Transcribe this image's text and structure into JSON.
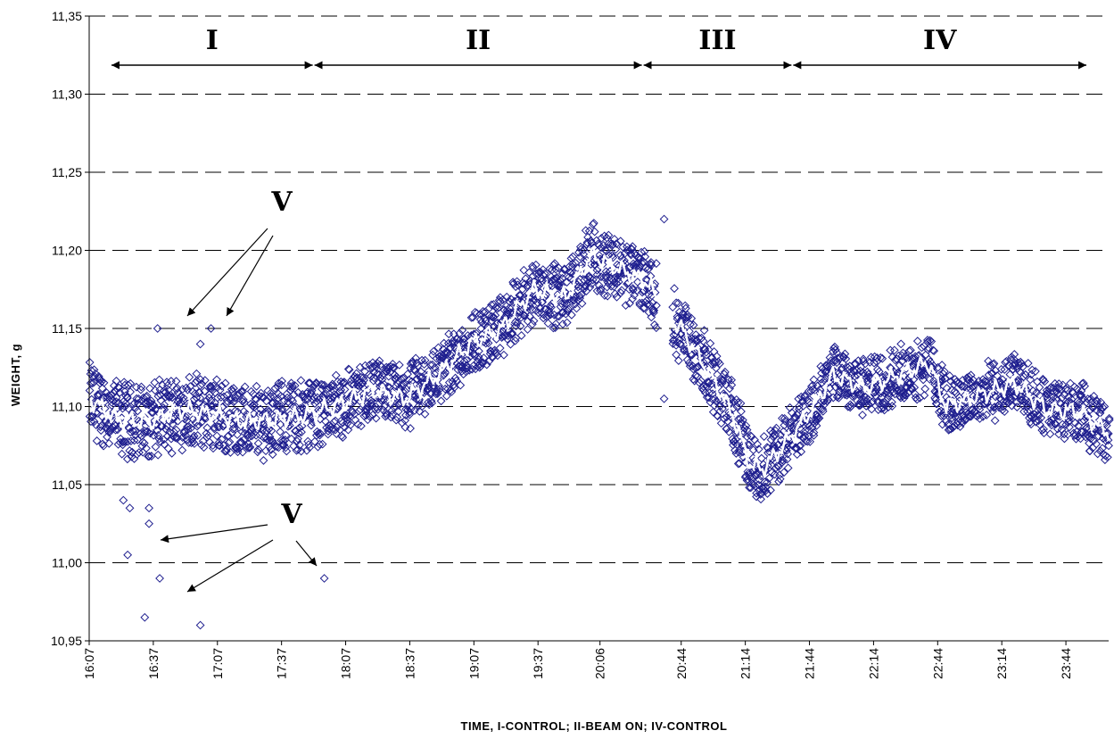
{
  "chart_data": {
    "type": "scatter",
    "title": "",
    "xlabel": "TIME, I-CONTROL; II-BEAM ON; IV-CONTROL",
    "ylabel": "WEIGHT, g",
    "ylim": [
      10.95,
      11.35
    ],
    "yticks": [
      "10,95",
      "11,00",
      "11,05",
      "11,10",
      "11,15",
      "11,20",
      "11,25",
      "11,30",
      "11,35"
    ],
    "xlim_minutes": [
      967,
      1444
    ],
    "xticks": [
      "16:07",
      "16:37",
      "17:07",
      "17:37",
      "18:07",
      "18:37",
      "19:07",
      "19:37",
      "20:06",
      "20:44",
      "21:14",
      "21:44",
      "22:14",
      "22:44",
      "23:14",
      "23:44"
    ],
    "grid": "horizontal dashed",
    "marker": "diamond",
    "marker_color": "#1f1f8f",
    "trend_color": "#ffffff",
    "series_profile": [
      {
        "t": 967,
        "y": 11.105
      },
      {
        "t": 980,
        "y": 11.092
      },
      {
        "t": 995,
        "y": 11.09
      },
      {
        "t": 1010,
        "y": 11.098
      },
      {
        "t": 1025,
        "y": 11.095
      },
      {
        "t": 1040,
        "y": 11.09
      },
      {
        "t": 1055,
        "y": 11.092
      },
      {
        "t": 1070,
        "y": 11.095
      },
      {
        "t": 1085,
        "y": 11.102
      },
      {
        "t": 1100,
        "y": 11.11
      },
      {
        "t": 1115,
        "y": 11.105
      },
      {
        "t": 1130,
        "y": 11.12
      },
      {
        "t": 1145,
        "y": 11.14
      },
      {
        "t": 1160,
        "y": 11.15
      },
      {
        "t": 1175,
        "y": 11.175
      },
      {
        "t": 1190,
        "y": 11.17
      },
      {
        "t": 1202,
        "y": 11.197
      },
      {
        "t": 1215,
        "y": 11.188
      },
      {
        "t": 1228,
        "y": 11.18
      },
      {
        "t": 1236,
        "y": 11.16
      },
      {
        "t": 1245,
        "y": 11.148
      },
      {
        "t": 1260,
        "y": 11.115
      },
      {
        "t": 1268,
        "y": 11.095
      },
      {
        "t": 1276,
        "y": 11.063
      },
      {
        "t": 1282,
        "y": 11.06
      },
      {
        "t": 1292,
        "y": 11.075
      },
      {
        "t": 1304,
        "y": 11.096
      },
      {
        "t": 1315,
        "y": 11.12
      },
      {
        "t": 1330,
        "y": 11.112
      },
      {
        "t": 1345,
        "y": 11.12
      },
      {
        "t": 1360,
        "y": 11.128
      },
      {
        "t": 1368,
        "y": 11.1
      },
      {
        "t": 1385,
        "y": 11.108
      },
      {
        "t": 1400,
        "y": 11.115
      },
      {
        "t": 1415,
        "y": 11.098
      },
      {
        "t": 1430,
        "y": 11.097
      },
      {
        "t": 1444,
        "y": 11.083
      }
    ],
    "gap_minutes": [
      1232,
      1240
    ],
    "outliers": [
      {
        "t": 983,
        "y": 11.04
      },
      {
        "t": 985,
        "y": 11.005
      },
      {
        "t": 986,
        "y": 11.035
      },
      {
        "t": 993,
        "y": 10.965
      },
      {
        "t": 995,
        "y": 11.025
      },
      {
        "t": 995,
        "y": 11.035
      },
      {
        "t": 1000,
        "y": 10.99
      },
      {
        "t": 999,
        "y": 11.15
      },
      {
        "t": 1019,
        "y": 10.96
      },
      {
        "t": 1019,
        "y": 11.14
      },
      {
        "t": 1024,
        "y": 11.15
      },
      {
        "t": 1077,
        "y": 10.99
      },
      {
        "t": 1236,
        "y": 11.22
      },
      {
        "t": 1236,
        "y": 11.105
      }
    ]
  },
  "annotations": {
    "periods": [
      {
        "label": "I",
        "start": 977,
        "end": 1072
      },
      {
        "label": "II",
        "start": 1072,
        "end": 1226
      },
      {
        "label": "III",
        "start": 1226,
        "end": 1296
      },
      {
        "label": "IV",
        "start": 1296,
        "end": 1434
      }
    ],
    "outlier_marker_label": "V"
  }
}
